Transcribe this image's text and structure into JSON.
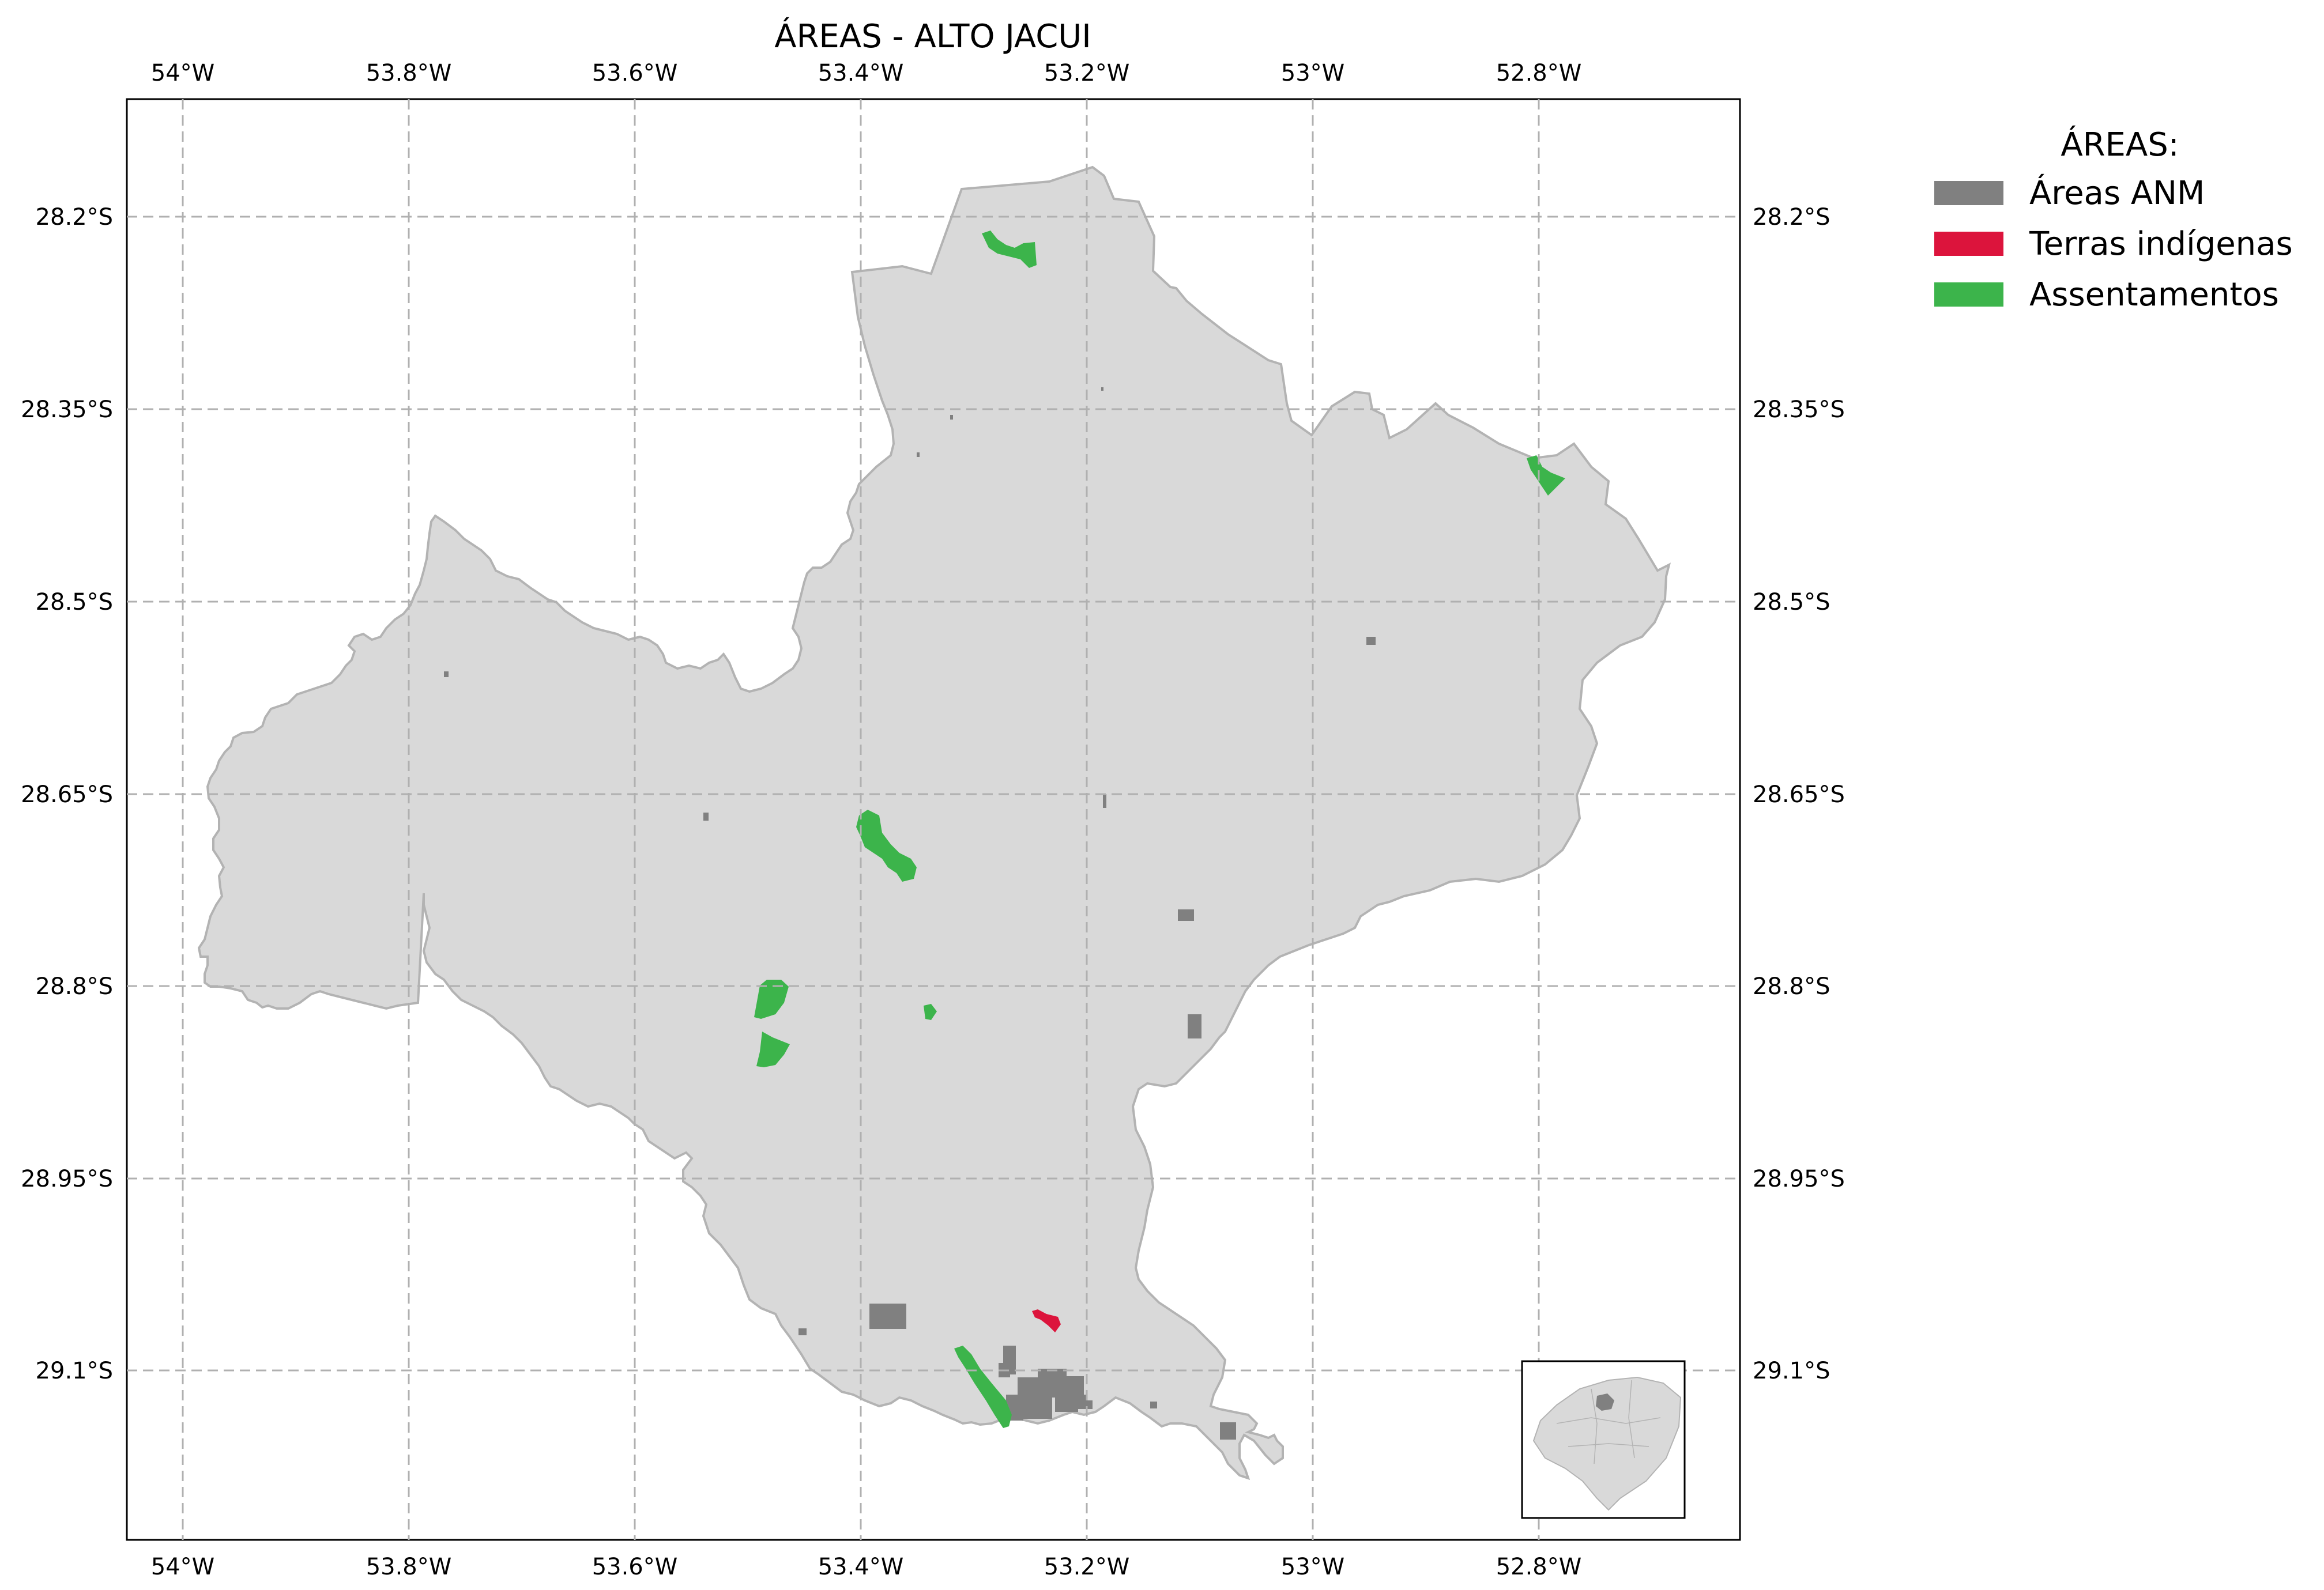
{
  "title": "ÁREAS - ALTO JACUI",
  "legend": {
    "title": "ÁREAS:",
    "items": [
      {
        "label": "Áreas ANM",
        "color": "#808080"
      },
      {
        "label": "Terras indígenas",
        "color": "#dc143c"
      },
      {
        "label": "Assentamentos",
        "color": "#3cb44b"
      }
    ]
  },
  "axes": {
    "x_ticks": [
      "54°W",
      "53.8°W",
      "53.6°W",
      "53.4°W",
      "53.2°W",
      "53°W",
      "52.8°W"
    ],
    "y_ticks": [
      "28.2°S",
      "28.35°S",
      "28.5°S",
      "28.65°S",
      "28.8°S",
      "28.95°S",
      "29.1°S"
    ],
    "x_values": [
      -54.0,
      -53.8,
      -53.6,
      -53.4,
      -53.2,
      -53.0,
      -52.8
    ],
    "y_values": [
      -28.2,
      -28.35,
      -28.5,
      -28.65,
      -28.8,
      -28.95,
      -29.1
    ],
    "xlim": [
      -54.05,
      -52.62
    ],
    "ylim": [
      -29.27,
      -28.11
    ],
    "gridlines": true
  },
  "colors": {
    "region_fill": "#d9d9d9",
    "region_edge": "#b3b3b3",
    "anm": "#808080",
    "indigenous": "#dc143c",
    "settlement": "#3cb44b",
    "grid": "#b0b0b0"
  },
  "inset": {
    "name": "rio-grande-do-sul-locator-map"
  }
}
